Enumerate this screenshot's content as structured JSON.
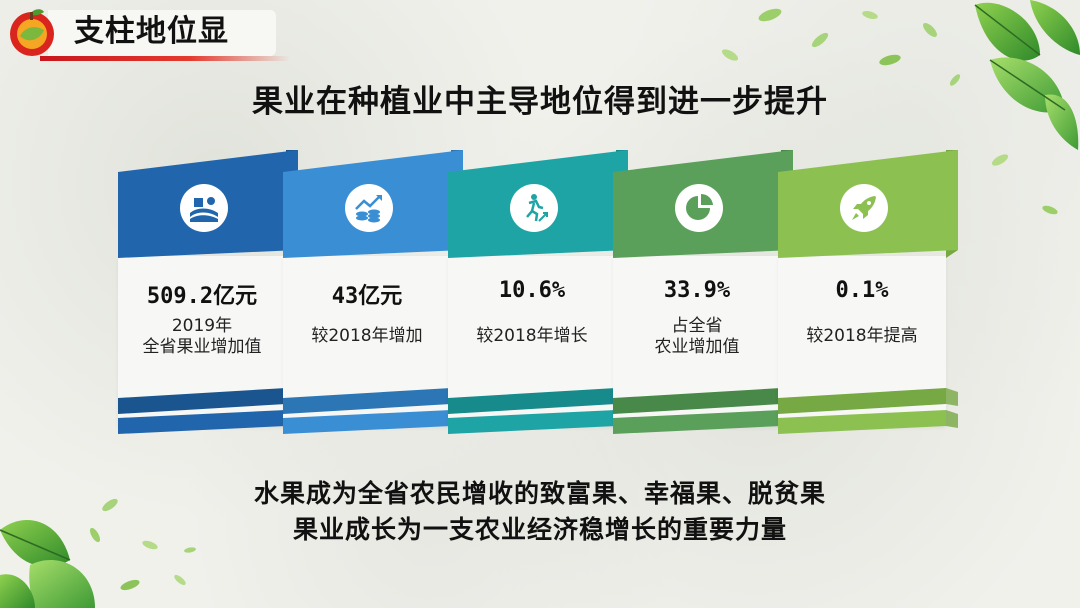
{
  "header": {
    "title": "支柱地位显"
  },
  "headline": "果业在种植业中主导地位得到进一步提升",
  "cards": [
    {
      "value": "509.2亿元",
      "label_line1": "2019年",
      "label_line2": "全省果业增加值",
      "icon": "farm-icon",
      "color_top": "#2166ad",
      "color_side": "#1a5590"
    },
    {
      "value": "43亿元",
      "label_line1": "较2018年增加",
      "label_line2": "",
      "icon": "money-growth-icon",
      "color_top": "#3a8fd4",
      "color_side": "#2c76b5"
    },
    {
      "value": "10.6%",
      "label_line1": "较2018年增长",
      "label_line2": "",
      "icon": "runner-icon",
      "color_top": "#1fa4a6",
      "color_side": "#178a8c"
    },
    {
      "value": "33.9%",
      "label_line1": "占全省",
      "label_line2": "农业增加值",
      "icon": "pie-chart-icon",
      "color_top": "#5aa05a",
      "color_side": "#488848"
    },
    {
      "value": "0.1%",
      "label_line1": "较2018年提高",
      "label_line2": "",
      "icon": "rocket-icon",
      "color_top": "#8cc152",
      "color_side": "#76a843"
    }
  ],
  "summary": {
    "line1": "水果成为全省农民增收的致富果、幸福果、脱贫果",
    "line2": "果业成长为一支农业经济稳增长的重要力量"
  }
}
